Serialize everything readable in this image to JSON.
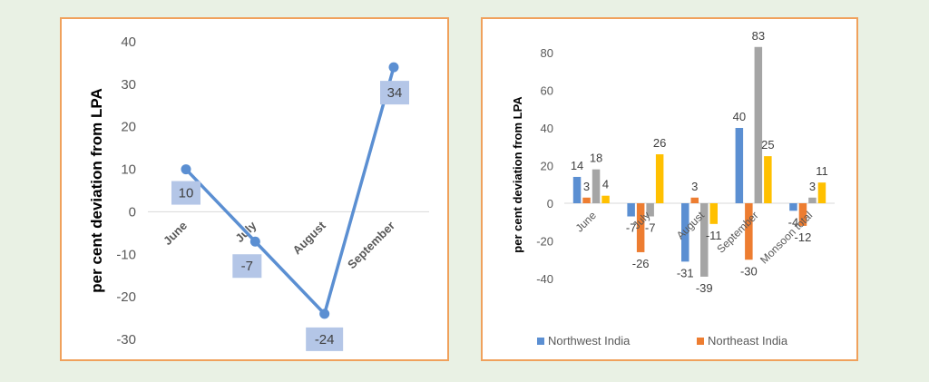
{
  "chart_data": [
    {
      "type": "line",
      "categories": [
        "June",
        "July",
        "August",
        "September"
      ],
      "series": [
        {
          "values": [
            10,
            -7,
            -24,
            34
          ],
          "color": "#5b8fd2"
        }
      ],
      "ylabel": "per cent deviation from LPA",
      "ylim": [
        -30,
        40
      ],
      "yticks": [
        40,
        30,
        20,
        10,
        0,
        -10,
        -20,
        -30
      ],
      "data_labels": [
        "10",
        "-7",
        "-24",
        "34"
      ],
      "label_box_color": "#b4c6e7",
      "grid": false
    },
    {
      "type": "bar",
      "categories": [
        "June",
        "July",
        "August",
        "September",
        "Monsoon total"
      ],
      "series": [
        {
          "name": "Northwest India",
          "values": [
            14,
            -7,
            -31,
            40,
            -4
          ],
          "color": "#5b8fd2"
        },
        {
          "name": "Northeast India",
          "values": [
            3,
            -26,
            3,
            -30,
            -12
          ],
          "color": "#ed7d31"
        },
        {
          "name": "",
          "values": [
            18,
            -7,
            -39,
            83,
            3
          ],
          "color": "#a5a5a5"
        },
        {
          "name": "",
          "values": [
            4,
            26,
            -11,
            25,
            11
          ],
          "color": "#ffc000"
        }
      ],
      "ylabel": "per cent deviation from LPA",
      "ylim": [
        -40,
        80
      ],
      "yticks": [
        80,
        60,
        40,
        20,
        0,
        -20,
        -40
      ],
      "data_labels": [
        [
          "14",
          "-7",
          "-31",
          "40",
          "-4"
        ],
        [
          "3",
          "-26",
          "3",
          "-30",
          "-12"
        ],
        [
          "18",
          "-7",
          "-39",
          "83",
          "3"
        ],
        [
          "4",
          "26",
          "-11",
          "25",
          "11"
        ]
      ],
      "legend_position": "bottom",
      "legend": [
        "Northwest India",
        "Northeast India"
      ],
      "grid": false
    }
  ]
}
